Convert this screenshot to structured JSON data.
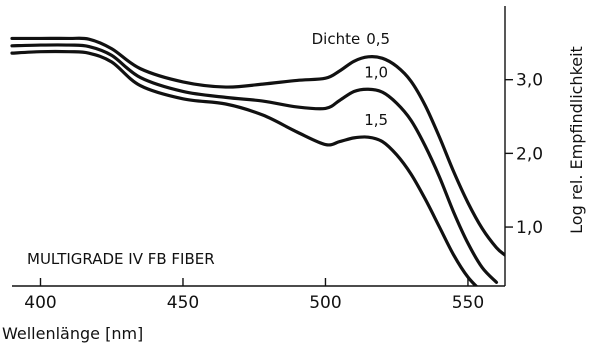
{
  "chart_data": {
    "type": "line",
    "inset_title": "MULTIGRADE IV FB FIBER",
    "xlabel": "Wellenlänge [nm]",
    "ylabel": "Log rel. Empfindlichkeit",
    "xlim": [
      390,
      563
    ],
    "ylim": [
      0.2,
      4.0
    ],
    "x_ticks": [
      {
        "value": 400,
        "label": "400"
      },
      {
        "value": 450,
        "label": "450"
      },
      {
        "value": 500,
        "label": "500"
      },
      {
        "value": 550,
        "label": "550"
      }
    ],
    "y_ticks": [
      {
        "value": 1.0,
        "label": "1,0"
      },
      {
        "value": 2.0,
        "label": "2,0"
      },
      {
        "value": 3.0,
        "label": "3,0"
      }
    ],
    "y_axis_side": "right",
    "grid": false,
    "series_label_prefix": "Dichte",
    "series": [
      {
        "name": "0,5",
        "x": [
          390,
          400,
          410,
          417,
          425,
          435,
          450,
          465,
          478,
          490,
          500,
          505,
          510,
          515,
          520,
          525,
          530,
          535,
          540,
          545,
          550,
          555,
          560,
          563
        ],
        "y": [
          3.56,
          3.56,
          3.56,
          3.55,
          3.42,
          3.15,
          2.97,
          2.9,
          2.94,
          2.99,
          3.02,
          3.12,
          3.25,
          3.31,
          3.29,
          3.18,
          2.98,
          2.65,
          2.22,
          1.75,
          1.33,
          0.98,
          0.72,
          0.62
        ]
      },
      {
        "name": "1,0",
        "x": [
          390,
          400,
          410,
          417,
          425,
          435,
          450,
          465,
          478,
          490,
          500,
          505,
          510,
          515,
          520,
          525,
          530,
          535,
          540,
          545,
          550,
          555,
          560
        ],
        "y": [
          3.46,
          3.47,
          3.47,
          3.45,
          3.33,
          3.03,
          2.84,
          2.76,
          2.71,
          2.63,
          2.61,
          2.72,
          2.84,
          2.87,
          2.83,
          2.68,
          2.45,
          2.1,
          1.68,
          1.2,
          0.78,
          0.45,
          0.25
        ]
      },
      {
        "name": "1,5",
        "x": [
          390,
          400,
          410,
          417,
          425,
          435,
          450,
          465,
          478,
          490,
          500,
          505,
          510,
          515,
          520,
          525,
          530,
          535,
          540,
          545,
          550,
          555,
          558
        ],
        "y": [
          3.36,
          3.38,
          3.38,
          3.36,
          3.24,
          2.92,
          2.74,
          2.67,
          2.52,
          2.29,
          2.12,
          2.16,
          2.21,
          2.22,
          2.16,
          1.98,
          1.72,
          1.38,
          1.0,
          0.62,
          0.32,
          0.12,
          0.02
        ]
      }
    ]
  }
}
